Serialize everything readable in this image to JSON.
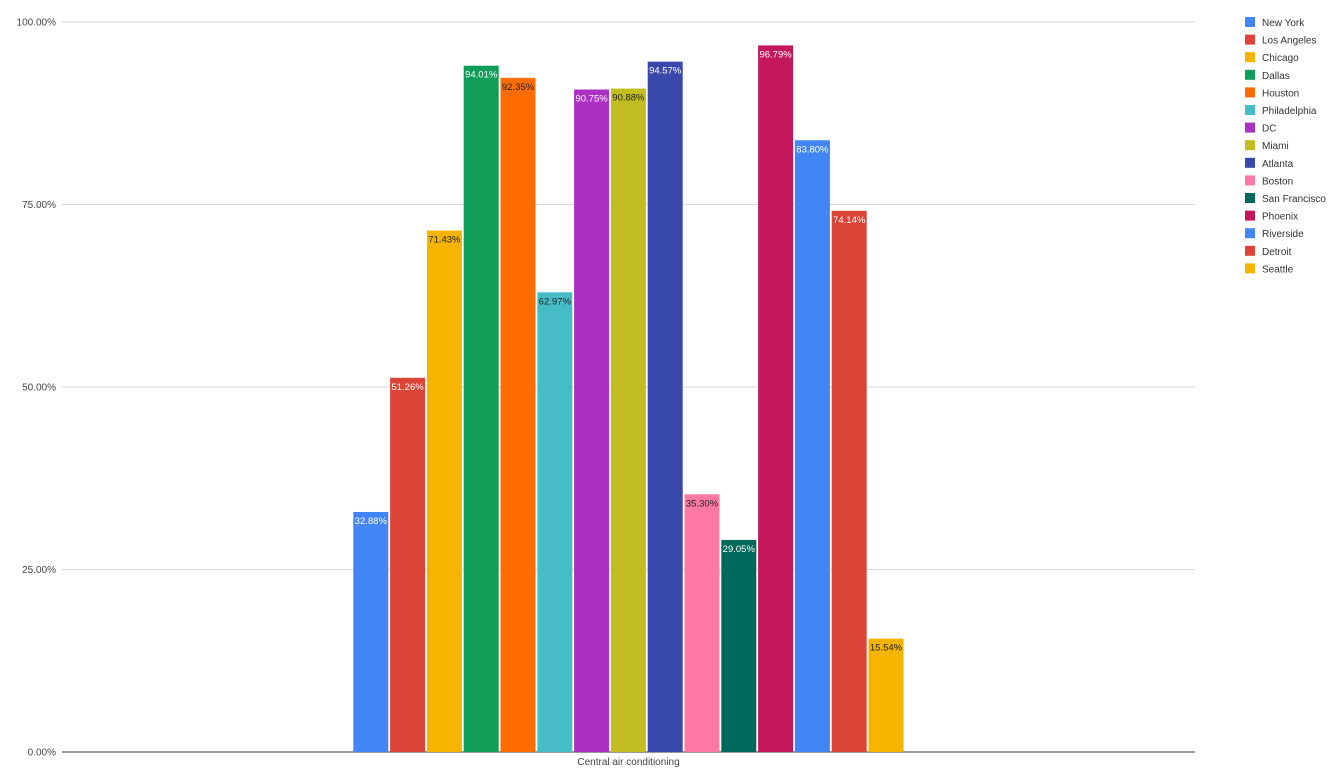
{
  "chart_data": {
    "type": "bar",
    "title": "",
    "xlabel": "",
    "ylabel": "",
    "categories": [
      "Central air conditioning"
    ],
    "ylim": [
      0,
      100
    ],
    "y_ticks": [
      {
        "value": 0,
        "label": "0.00%"
      },
      {
        "value": 25,
        "label": "25.00%"
      },
      {
        "value": 50,
        "label": "50.00%"
      },
      {
        "value": 75,
        "label": "75.00%"
      },
      {
        "value": 100,
        "label": "100.00%"
      }
    ],
    "grid": true,
    "legend_position": "right",
    "series": [
      {
        "name": "New York",
        "values": [
          32.88
        ],
        "label": "32.88%",
        "color": "#4285f4",
        "label_color": "#ffffff"
      },
      {
        "name": "Los Angeles",
        "values": [
          51.26
        ],
        "label": "51.26%",
        "color": "#db4437",
        "label_color": "#ffffff"
      },
      {
        "name": "Chicago",
        "values": [
          71.43
        ],
        "label": "71.43%",
        "color": "#f4b400",
        "label_color": "#222222"
      },
      {
        "name": "Dallas",
        "values": [
          94.01
        ],
        "label": "94.01%",
        "color": "#0f9d58",
        "label_color": "#ffffff"
      },
      {
        "name": "Houston",
        "values": [
          92.35
        ],
        "label": "92.35%",
        "color": "#ff6d00",
        "label_color": "#222222"
      },
      {
        "name": "Philadelphia",
        "values": [
          62.97
        ],
        "label": "62.97%",
        "color": "#46bdc6",
        "label_color": "#222222"
      },
      {
        "name": "DC",
        "values": [
          90.75
        ],
        "label": "90.75%",
        "color": "#ab30c4",
        "label_color": "#ffffff"
      },
      {
        "name": "Miami",
        "values": [
          90.88
        ],
        "label": "90.88%",
        "color": "#c2bd21",
        "label_color": "#222222"
      },
      {
        "name": "Atlanta",
        "values": [
          94.57
        ],
        "label": "94.57%",
        "color": "#3949ab",
        "label_color": "#ffffff"
      },
      {
        "name": "Boston",
        "values": [
          35.3
        ],
        "label": "35.30%",
        "color": "#ff78a6",
        "label_color": "#222222"
      },
      {
        "name": "San Francisco",
        "values": [
          29.05
        ],
        "label": "29.05%",
        "color": "#00695c",
        "label_color": "#ffffff"
      },
      {
        "name": "Phoenix",
        "values": [
          96.79
        ],
        "label": "96.79%",
        "color": "#c2185b",
        "label_color": "#ffffff"
      },
      {
        "name": "Riverside",
        "values": [
          83.8
        ],
        "label": "83.80%",
        "color": "#4285f4",
        "label_color": "#ffffff"
      },
      {
        "name": "Detroit",
        "values": [
          74.14
        ],
        "label": "74.14%",
        "color": "#db4437",
        "label_color": "#ffffff"
      },
      {
        "name": "Seattle",
        "values": [
          15.54
        ],
        "label": "15.54%",
        "color": "#f4b400",
        "label_color": "#222222"
      }
    ]
  }
}
